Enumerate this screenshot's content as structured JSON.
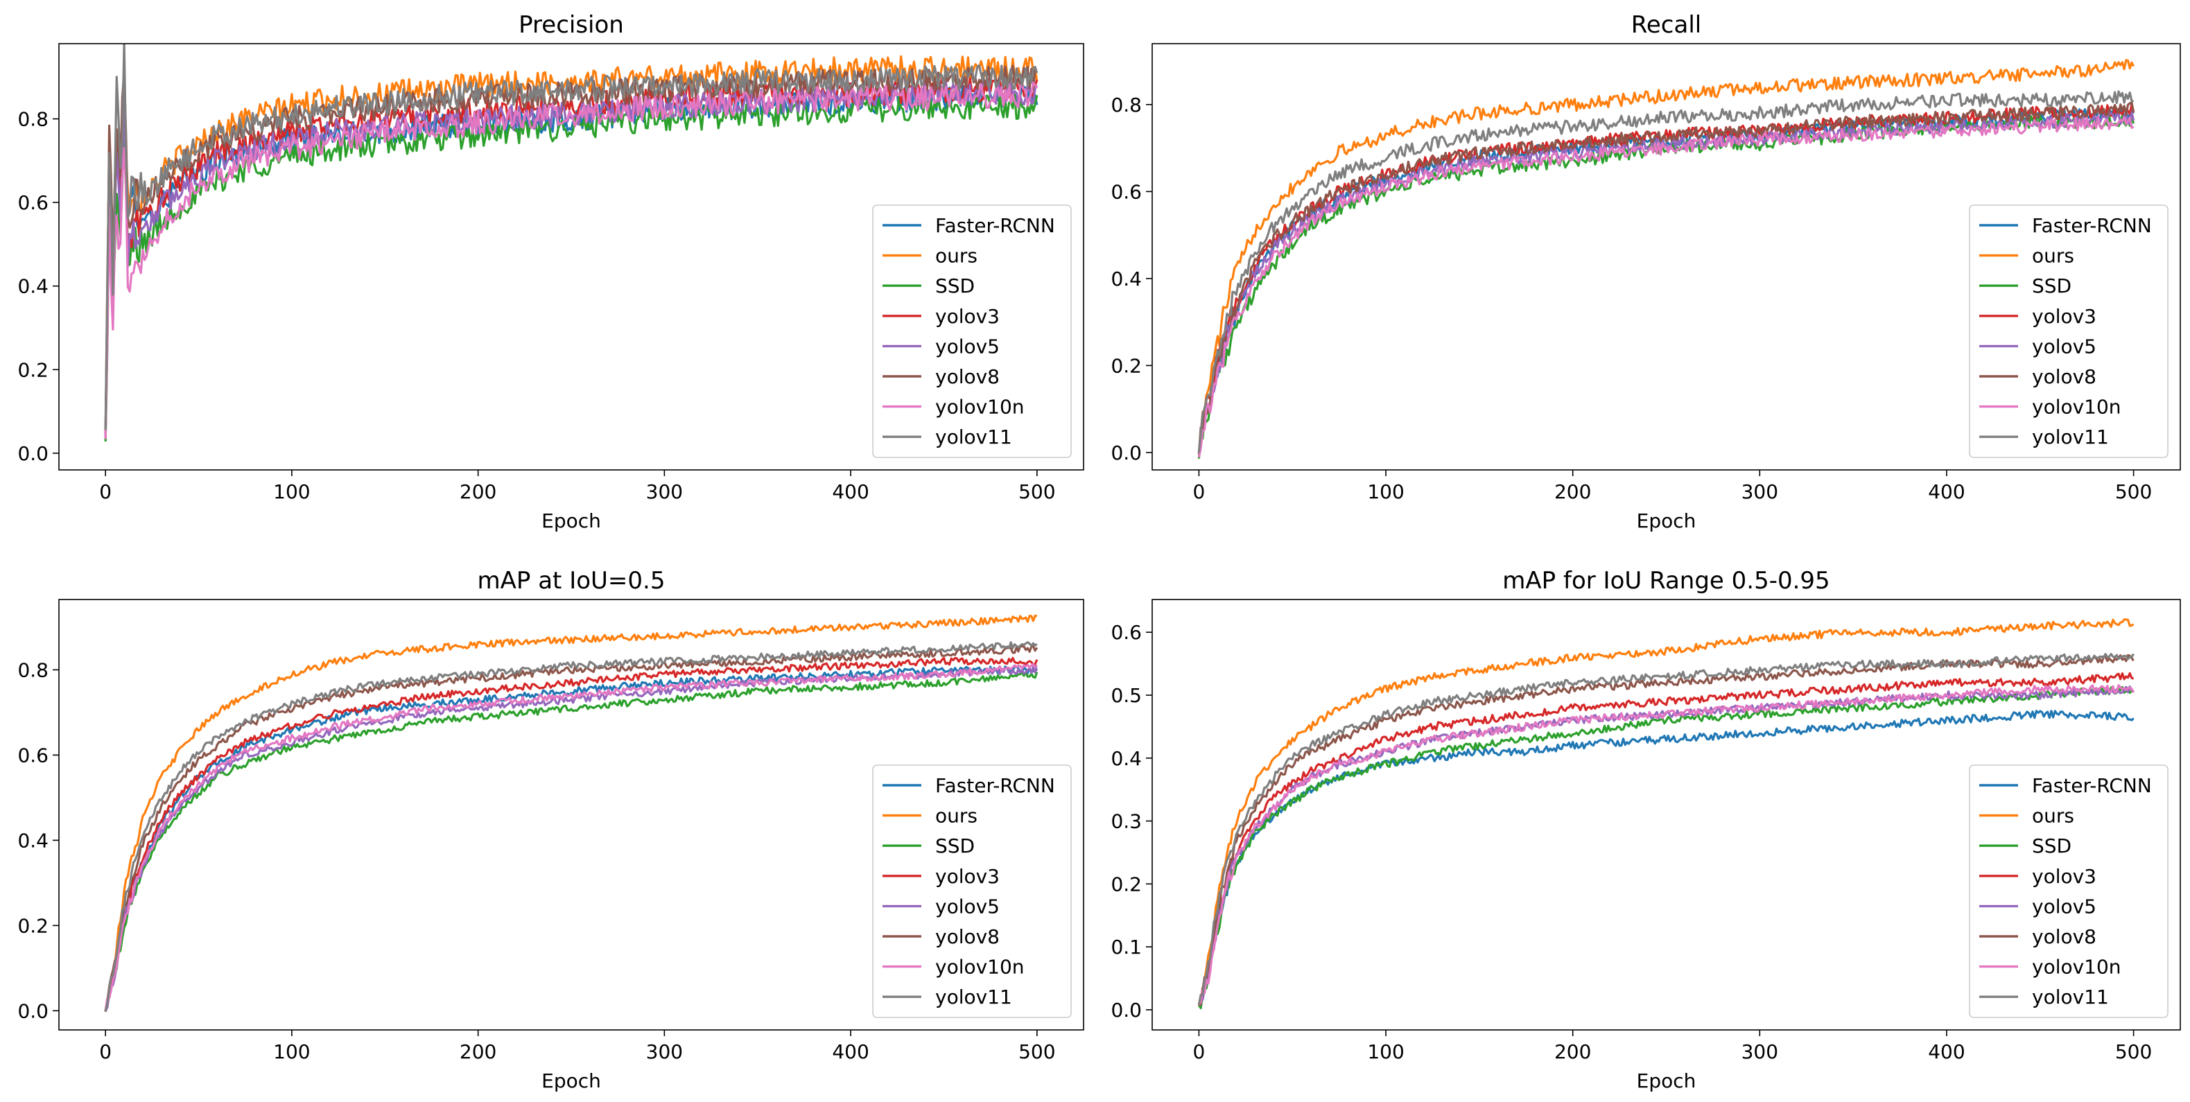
{
  "figure": {
    "series_names": [
      "Faster-RCNN",
      "ours",
      "SSD",
      "yolov3",
      "yolov5",
      "yolov8",
      "yolov10n",
      "yolov11"
    ],
    "series_colors": [
      "#1f77b4",
      "#ff7f0e",
      "#2ca02c",
      "#d62728",
      "#9467bd",
      "#8c564b",
      "#e377c2",
      "#7f7f7f"
    ]
  },
  "chart_data": [
    {
      "type": "line",
      "title": "Precision",
      "xlabel": "Epoch",
      "ylabel": "",
      "xlim": [
        -25,
        525
      ],
      "ylim": [
        -0.04,
        0.98
      ],
      "xticks": [
        0,
        100,
        200,
        300,
        400,
        500
      ],
      "yticks": [
        0.0,
        0.2,
        0.4,
        0.6,
        0.8
      ],
      "ytick_labels": [
        "0.0",
        "0.2",
        "0.4",
        "0.6",
        "0.8"
      ],
      "legend": "lower-right",
      "x": [
        0,
        2,
        4,
        6,
        8,
        10,
        12,
        15,
        20,
        25,
        30,
        40,
        50,
        60,
        75,
        100,
        125,
        150,
        175,
        200,
        250,
        300,
        350,
        400,
        450,
        500
      ],
      "noise": 0.03,
      "series": [
        {
          "name": "Faster-RCNN",
          "values": [
            0.02,
            0.7,
            0.4,
            0.75,
            0.6,
            0.82,
            0.55,
            0.6,
            0.58,
            0.56,
            0.6,
            0.64,
            0.67,
            0.7,
            0.72,
            0.75,
            0.76,
            0.77,
            0.78,
            0.79,
            0.8,
            0.82,
            0.83,
            0.84,
            0.85,
            0.86
          ]
        },
        {
          "name": "ours",
          "values": [
            0.02,
            0.75,
            0.45,
            0.8,
            0.7,
            0.9,
            0.6,
            0.65,
            0.62,
            0.64,
            0.67,
            0.71,
            0.74,
            0.77,
            0.8,
            0.83,
            0.85,
            0.86,
            0.87,
            0.88,
            0.89,
            0.9,
            0.91,
            0.92,
            0.92,
            0.92
          ]
        },
        {
          "name": "SSD",
          "values": [
            0.01,
            0.6,
            0.35,
            0.65,
            0.5,
            0.8,
            0.45,
            0.5,
            0.5,
            0.52,
            0.55,
            0.59,
            0.62,
            0.65,
            0.68,
            0.71,
            0.73,
            0.74,
            0.75,
            0.76,
            0.78,
            0.8,
            0.81,
            0.82,
            0.83,
            0.83
          ]
        },
        {
          "name": "yolov3",
          "values": [
            0.02,
            0.72,
            0.4,
            0.78,
            0.62,
            0.85,
            0.5,
            0.55,
            0.56,
            0.58,
            0.61,
            0.65,
            0.69,
            0.72,
            0.74,
            0.77,
            0.79,
            0.8,
            0.81,
            0.82,
            0.83,
            0.85,
            0.86,
            0.86,
            0.87,
            0.87
          ]
        },
        {
          "name": "yolov5",
          "values": [
            0.02,
            0.68,
            0.38,
            0.76,
            0.58,
            0.84,
            0.48,
            0.52,
            0.54,
            0.56,
            0.59,
            0.63,
            0.67,
            0.7,
            0.72,
            0.75,
            0.77,
            0.78,
            0.79,
            0.8,
            0.81,
            0.83,
            0.84,
            0.85,
            0.86,
            0.86
          ]
        },
        {
          "name": "yolov8",
          "values": [
            0.03,
            0.78,
            0.45,
            0.82,
            0.7,
            0.94,
            0.58,
            0.62,
            0.6,
            0.62,
            0.65,
            0.69,
            0.72,
            0.75,
            0.77,
            0.8,
            0.82,
            0.83,
            0.84,
            0.85,
            0.86,
            0.87,
            0.88,
            0.89,
            0.89,
            0.9
          ]
        },
        {
          "name": "yolov10n",
          "values": [
            0.01,
            0.55,
            0.3,
            0.62,
            0.45,
            0.78,
            0.4,
            0.45,
            0.48,
            0.5,
            0.55,
            0.6,
            0.64,
            0.67,
            0.7,
            0.73,
            0.75,
            0.77,
            0.78,
            0.79,
            0.81,
            0.83,
            0.84,
            0.85,
            0.85,
            0.86
          ]
        },
        {
          "name": "yolov11",
          "values": [
            0.03,
            0.75,
            0.42,
            0.85,
            0.65,
            0.95,
            0.55,
            0.65,
            0.62,
            0.63,
            0.66,
            0.7,
            0.73,
            0.76,
            0.78,
            0.81,
            0.83,
            0.84,
            0.85,
            0.86,
            0.87,
            0.88,
            0.89,
            0.89,
            0.9,
            0.9
          ]
        }
      ]
    },
    {
      "type": "line",
      "title": "Recall",
      "xlabel": "Epoch",
      "ylabel": "",
      "xlim": [
        -25,
        525
      ],
      "ylim": [
        -0.04,
        0.94
      ],
      "xticks": [
        0,
        100,
        200,
        300,
        400,
        500
      ],
      "yticks": [
        0.0,
        0.2,
        0.4,
        0.6,
        0.8
      ],
      "ytick_labels": [
        "0.0",
        "0.2",
        "0.4",
        "0.6",
        "0.8"
      ],
      "legend": "lower-right",
      "x": [
        0,
        5,
        10,
        15,
        20,
        30,
        40,
        50,
        60,
        75,
        100,
        125,
        150,
        175,
        200,
        250,
        300,
        350,
        400,
        450,
        500
      ],
      "noise": 0.015,
      "series": [
        {
          "name": "Faster-RCNN",
          "values": [
            0.02,
            0.12,
            0.2,
            0.27,
            0.33,
            0.42,
            0.48,
            0.52,
            0.55,
            0.59,
            0.63,
            0.66,
            0.68,
            0.69,
            0.7,
            0.72,
            0.73,
            0.75,
            0.76,
            0.77,
            0.78
          ]
        },
        {
          "name": "ours",
          "values": [
            0.02,
            0.15,
            0.25,
            0.35,
            0.42,
            0.51,
            0.57,
            0.61,
            0.65,
            0.69,
            0.73,
            0.76,
            0.78,
            0.79,
            0.8,
            0.82,
            0.84,
            0.85,
            0.86,
            0.87,
            0.89
          ]
        },
        {
          "name": "SSD",
          "values": [
            0.01,
            0.1,
            0.18,
            0.24,
            0.29,
            0.37,
            0.43,
            0.48,
            0.52,
            0.56,
            0.6,
            0.63,
            0.65,
            0.66,
            0.67,
            0.7,
            0.71,
            0.73,
            0.75,
            0.76,
            0.76
          ]
        },
        {
          "name": "yolov3",
          "values": [
            0.02,
            0.12,
            0.21,
            0.28,
            0.34,
            0.43,
            0.49,
            0.53,
            0.56,
            0.6,
            0.64,
            0.67,
            0.69,
            0.7,
            0.71,
            0.73,
            0.74,
            0.76,
            0.77,
            0.78,
            0.79
          ]
        },
        {
          "name": "yolov5",
          "values": [
            0.02,
            0.11,
            0.2,
            0.27,
            0.33,
            0.41,
            0.47,
            0.51,
            0.54,
            0.58,
            0.62,
            0.65,
            0.67,
            0.68,
            0.69,
            0.71,
            0.72,
            0.74,
            0.75,
            0.76,
            0.77
          ]
        },
        {
          "name": "yolov8",
          "values": [
            0.02,
            0.12,
            0.21,
            0.28,
            0.34,
            0.43,
            0.49,
            0.53,
            0.56,
            0.6,
            0.64,
            0.67,
            0.69,
            0.7,
            0.71,
            0.73,
            0.74,
            0.76,
            0.77,
            0.78,
            0.79
          ]
        },
        {
          "name": "yolov10n",
          "values": [
            0.01,
            0.1,
            0.18,
            0.25,
            0.3,
            0.39,
            0.45,
            0.49,
            0.53,
            0.57,
            0.61,
            0.64,
            0.66,
            0.67,
            0.68,
            0.7,
            0.72,
            0.73,
            0.74,
            0.75,
            0.76
          ]
        },
        {
          "name": "yolov11",
          "values": [
            0.02,
            0.14,
            0.23,
            0.31,
            0.37,
            0.46,
            0.52,
            0.56,
            0.6,
            0.64,
            0.68,
            0.71,
            0.73,
            0.74,
            0.75,
            0.77,
            0.78,
            0.8,
            0.81,
            0.81,
            0.82
          ]
        }
      ]
    },
    {
      "type": "line",
      "title": "mAP at IoU=0.5",
      "xlabel": "Epoch",
      "ylabel": "",
      "xlim": [
        -25,
        525
      ],
      "ylim": [
        -0.045,
        0.965
      ],
      "xticks": [
        0,
        100,
        200,
        300,
        400,
        500
      ],
      "yticks": [
        0.0,
        0.2,
        0.4,
        0.6,
        0.8
      ],
      "ytick_labels": [
        "0.0",
        "0.2",
        "0.4",
        "0.6",
        "0.8"
      ],
      "legend": "lower-right",
      "x": [
        0,
        5,
        10,
        15,
        20,
        30,
        40,
        50,
        60,
        75,
        100,
        125,
        150,
        175,
        200,
        250,
        300,
        350,
        400,
        450,
        500
      ],
      "noise": 0.008,
      "series": [
        {
          "name": "Faster-RCNN",
          "values": [
            0.0,
            0.1,
            0.22,
            0.29,
            0.35,
            0.44,
            0.5,
            0.55,
            0.58,
            0.62,
            0.66,
            0.69,
            0.71,
            0.72,
            0.73,
            0.75,
            0.77,
            0.78,
            0.79,
            0.8,
            0.8
          ]
        },
        {
          "name": "ours",
          "values": [
            0.0,
            0.12,
            0.28,
            0.37,
            0.45,
            0.55,
            0.61,
            0.66,
            0.7,
            0.74,
            0.79,
            0.82,
            0.84,
            0.85,
            0.86,
            0.87,
            0.88,
            0.89,
            0.9,
            0.91,
            0.92
          ]
        },
        {
          "name": "SSD",
          "values": [
            0.0,
            0.08,
            0.2,
            0.27,
            0.33,
            0.41,
            0.47,
            0.51,
            0.55,
            0.58,
            0.62,
            0.64,
            0.66,
            0.68,
            0.69,
            0.71,
            0.73,
            0.75,
            0.76,
            0.77,
            0.79
          ]
        },
        {
          "name": "yolov3",
          "values": [
            0.0,
            0.1,
            0.22,
            0.3,
            0.36,
            0.45,
            0.51,
            0.55,
            0.59,
            0.63,
            0.67,
            0.7,
            0.72,
            0.74,
            0.75,
            0.77,
            0.79,
            0.8,
            0.81,
            0.82,
            0.82
          ]
        },
        {
          "name": "yolov5",
          "values": [
            0.0,
            0.09,
            0.21,
            0.28,
            0.34,
            0.42,
            0.48,
            0.52,
            0.56,
            0.6,
            0.63,
            0.66,
            0.68,
            0.7,
            0.71,
            0.73,
            0.75,
            0.77,
            0.78,
            0.79,
            0.8
          ]
        },
        {
          "name": "yolov8",
          "values": [
            0.0,
            0.11,
            0.24,
            0.32,
            0.39,
            0.48,
            0.54,
            0.59,
            0.62,
            0.67,
            0.71,
            0.74,
            0.76,
            0.77,
            0.78,
            0.8,
            0.81,
            0.82,
            0.83,
            0.84,
            0.85
          ]
        },
        {
          "name": "yolov10n",
          "values": [
            0.0,
            0.09,
            0.21,
            0.28,
            0.34,
            0.43,
            0.49,
            0.53,
            0.57,
            0.61,
            0.64,
            0.67,
            0.69,
            0.71,
            0.72,
            0.74,
            0.76,
            0.77,
            0.78,
            0.79,
            0.81
          ]
        },
        {
          "name": "yolov11",
          "values": [
            0.0,
            0.12,
            0.25,
            0.34,
            0.41,
            0.5,
            0.56,
            0.61,
            0.64,
            0.68,
            0.72,
            0.75,
            0.77,
            0.78,
            0.79,
            0.81,
            0.82,
            0.83,
            0.84,
            0.85,
            0.86
          ]
        }
      ]
    },
    {
      "type": "line",
      "title": "mAP for IoU Range 0.5-0.95",
      "xlabel": "Epoch",
      "ylabel": "",
      "xlim": [
        -25,
        525
      ],
      "ylim": [
        -0.032,
        0.652
      ],
      "xticks": [
        0,
        100,
        200,
        300,
        400,
        500
      ],
      "yticks": [
        0.0,
        0.1,
        0.2,
        0.3,
        0.4,
        0.5,
        0.6
      ],
      "ytick_labels": [
        "0.0",
        "0.1",
        "0.2",
        "0.3",
        "0.4",
        "0.5",
        "0.6"
      ],
      "legend": "lower-right",
      "x": [
        0,
        5,
        10,
        15,
        20,
        30,
        40,
        50,
        60,
        75,
        100,
        125,
        150,
        175,
        200,
        250,
        300,
        350,
        400,
        450,
        500
      ],
      "noise": 0.006,
      "series": [
        {
          "name": "Faster-RCNN",
          "values": [
            0.0,
            0.06,
            0.14,
            0.19,
            0.23,
            0.28,
            0.31,
            0.33,
            0.35,
            0.37,
            0.39,
            0.4,
            0.41,
            0.41,
            0.42,
            0.43,
            0.44,
            0.45,
            0.46,
            0.47,
            0.465
          ]
        },
        {
          "name": "ours",
          "values": [
            0.0,
            0.08,
            0.18,
            0.25,
            0.3,
            0.36,
            0.4,
            0.43,
            0.45,
            0.48,
            0.51,
            0.53,
            0.54,
            0.55,
            0.56,
            0.57,
            0.59,
            0.6,
            0.6,
            0.61,
            0.615
          ]
        },
        {
          "name": "SSD",
          "values": [
            0.0,
            0.05,
            0.13,
            0.19,
            0.23,
            0.28,
            0.31,
            0.33,
            0.35,
            0.37,
            0.39,
            0.41,
            0.42,
            0.43,
            0.44,
            0.46,
            0.47,
            0.48,
            0.49,
            0.5,
            0.51
          ]
        },
        {
          "name": "yolov3",
          "values": [
            0.0,
            0.06,
            0.15,
            0.21,
            0.25,
            0.3,
            0.34,
            0.36,
            0.38,
            0.4,
            0.43,
            0.45,
            0.46,
            0.47,
            0.48,
            0.49,
            0.5,
            0.51,
            0.52,
            0.52,
            0.53
          ]
        },
        {
          "name": "yolov5",
          "values": [
            0.0,
            0.05,
            0.14,
            0.2,
            0.24,
            0.29,
            0.32,
            0.35,
            0.37,
            0.39,
            0.41,
            0.43,
            0.44,
            0.45,
            0.46,
            0.47,
            0.48,
            0.49,
            0.5,
            0.5,
            0.51
          ]
        },
        {
          "name": "yolov8",
          "values": [
            0.0,
            0.07,
            0.16,
            0.22,
            0.27,
            0.32,
            0.36,
            0.39,
            0.41,
            0.43,
            0.46,
            0.48,
            0.49,
            0.5,
            0.51,
            0.52,
            0.53,
            0.54,
            0.55,
            0.55,
            0.56
          ]
        },
        {
          "name": "yolov10n",
          "values": [
            0.0,
            0.05,
            0.14,
            0.2,
            0.24,
            0.29,
            0.32,
            0.35,
            0.37,
            0.39,
            0.41,
            0.43,
            0.44,
            0.45,
            0.46,
            0.47,
            0.48,
            0.49,
            0.5,
            0.51,
            0.51
          ]
        },
        {
          "name": "yolov11",
          "values": [
            0.0,
            0.07,
            0.17,
            0.23,
            0.28,
            0.33,
            0.37,
            0.4,
            0.42,
            0.44,
            0.47,
            0.49,
            0.5,
            0.51,
            0.52,
            0.53,
            0.54,
            0.55,
            0.55,
            0.56,
            0.56
          ]
        }
      ]
    }
  ]
}
